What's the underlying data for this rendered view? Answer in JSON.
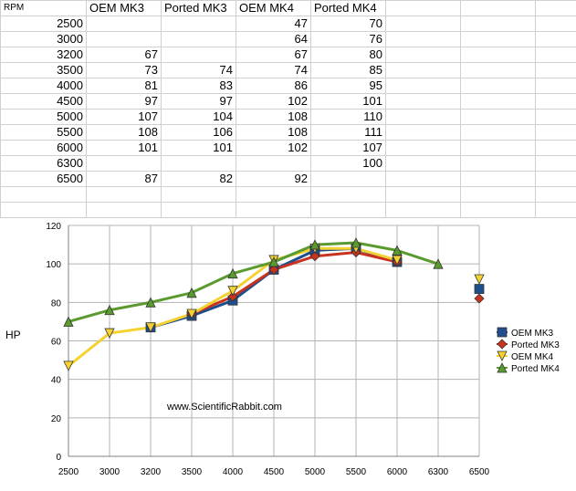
{
  "sheet": {
    "header": [
      "RPM",
      "OEM MK3",
      "Ported MK3",
      "OEM MK4",
      "Ported MK4"
    ],
    "rows": [
      [
        "2500",
        "",
        "",
        "47",
        "70"
      ],
      [
        "3000",
        "",
        "",
        "64",
        "76"
      ],
      [
        "3200",
        "67",
        "",
        "67",
        "80"
      ],
      [
        "3500",
        "73",
        "74",
        "74",
        "85"
      ],
      [
        "4000",
        "81",
        "83",
        "86",
        "95"
      ],
      [
        "4500",
        "97",
        "97",
        "102",
        "101"
      ],
      [
        "5000",
        "107",
        "104",
        "108",
        "110"
      ],
      [
        "5500",
        "108",
        "106",
        "108",
        "111"
      ],
      [
        "6000",
        "101",
        "101",
        "102",
        "107"
      ],
      [
        "6300",
        "",
        "",
        "",
        "100"
      ],
      [
        "6500",
        "87",
        "82",
        "92",
        ""
      ]
    ]
  },
  "chart_data": {
    "type": "line",
    "categories": [
      "2500",
      "3000",
      "3200",
      "3500",
      "4000",
      "4500",
      "5000",
      "5500",
      "6000",
      "6300",
      "6500"
    ],
    "series": [
      {
        "name": "OEM MK3",
        "color": "#1f4e8c",
        "marker": "square",
        "values": [
          null,
          null,
          67,
          73,
          81,
          97,
          107,
          108,
          101,
          null,
          87
        ]
      },
      {
        "name": "Ported MK3",
        "color": "#c8321e",
        "marker": "diamond",
        "values": [
          null,
          null,
          null,
          74,
          83,
          97,
          104,
          106,
          101,
          null,
          82
        ]
      },
      {
        "name": "OEM MK4",
        "color": "#f5d232",
        "marker": "triangle-down",
        "values": [
          47,
          64,
          67,
          74,
          86,
          102,
          108,
          108,
          102,
          null,
          92
        ]
      },
      {
        "name": "Ported MK4",
        "color": "#5a9a2e",
        "marker": "triangle-up",
        "values": [
          70,
          76,
          80,
          85,
          95,
          101,
          110,
          111,
          107,
          100,
          null
        ]
      }
    ],
    "ylabel": "HP",
    "ylim": [
      0,
      120
    ],
    "yticks": [
      0,
      20,
      40,
      60,
      80,
      100,
      120
    ],
    "grid": true,
    "legend": "right",
    "annotation": "www.ScientificRabbit.com"
  }
}
